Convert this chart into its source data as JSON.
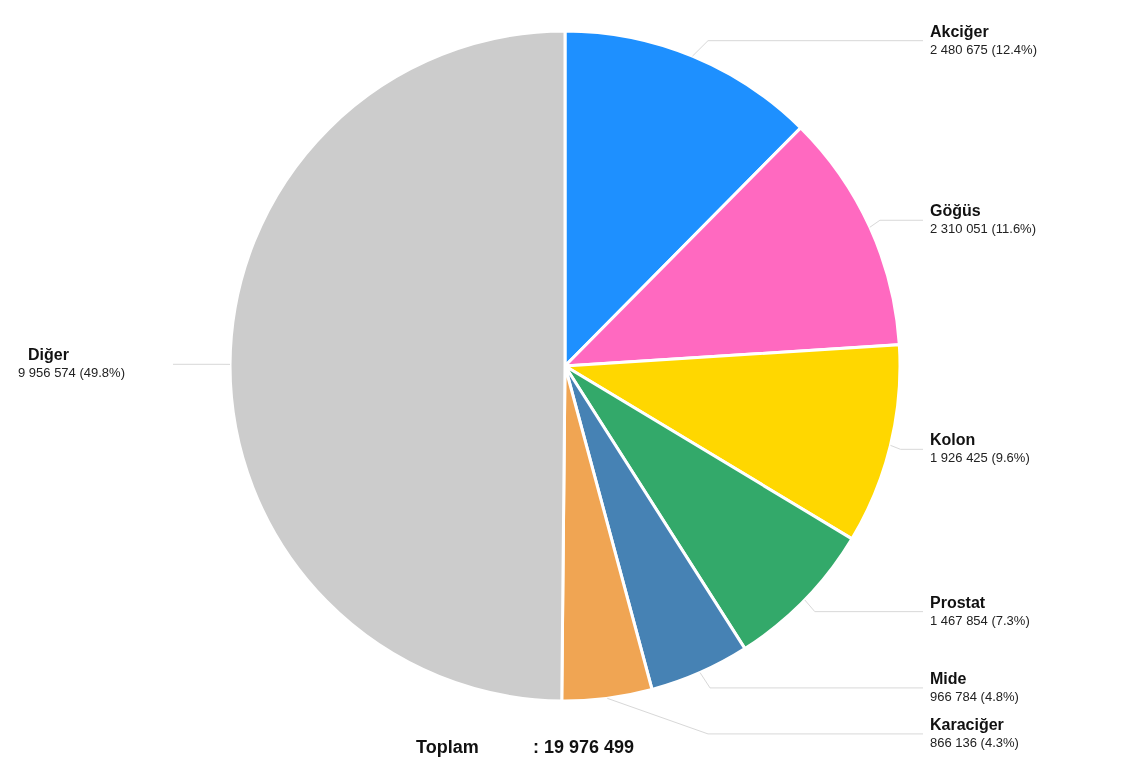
{
  "chart_data": {
    "type": "pie",
    "categories": [
      "Akciğer",
      "Göğüs",
      "Kolon",
      "Prostat",
      "Mide",
      "Karaciğer",
      "Diğer"
    ],
    "values": [
      2480675,
      2310051,
      1926425,
      1467854,
      966784,
      866136,
      9956574
    ],
    "colors": [
      "#1e90ff",
      "#ff69c0",
      "#ffd700",
      "#33a96a",
      "#4682b4",
      "#f0a553",
      "#cccccc"
    ],
    "value_labels": [
      "2 480 675 (12.4%)",
      "2 310 051 (11.6%)",
      "1 926 425 (9.6%)",
      "1 467 854 (7.3%)",
      "966 784 (4.8%)",
      "866 136 (4.3%)",
      "9 956 574 (49.8%)"
    ],
    "annotations": [
      "Toplam",
      ": 19 976 499"
    ]
  }
}
